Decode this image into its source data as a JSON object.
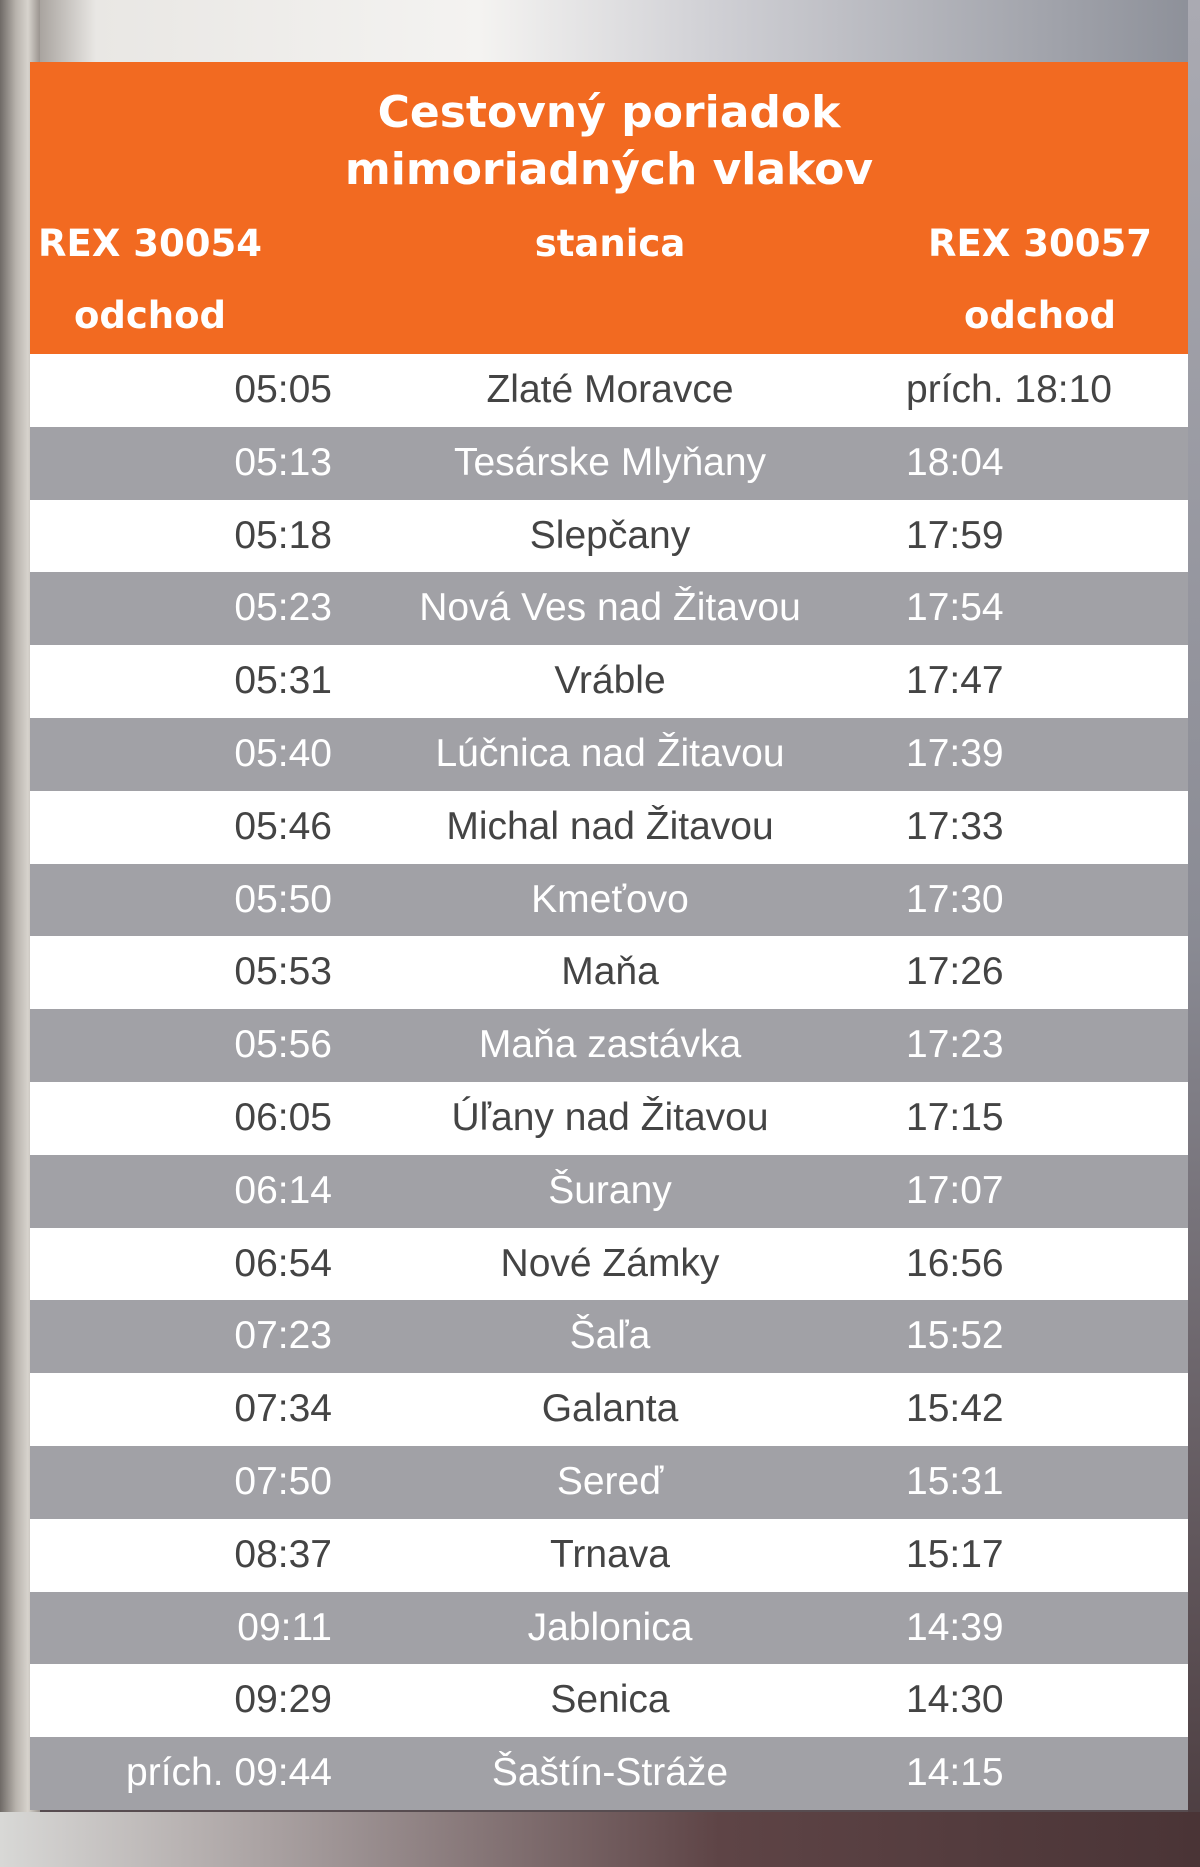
{
  "header": {
    "title_line1": "Cestovný poriadok",
    "title_line2": "mimoriadných vlakov",
    "col_left_train": "REX 30054",
    "col_left_label": "odchod",
    "col_mid_label": "stanica",
    "col_right_train": "REX 30057",
    "col_right_label": "odchod"
  },
  "colors": {
    "header_bg": "#f26a21",
    "row_alt_bg": "#a1a1a6",
    "row_bg": "#ffffff"
  },
  "rows": [
    {
      "left": "05:05",
      "station": "Zlaté Moravce",
      "right": "prích. 18:10"
    },
    {
      "left": "05:13",
      "station": "Tesárske Mlyňany",
      "right": "18:04"
    },
    {
      "left": "05:18",
      "station": "Slepčany",
      "right": "17:59"
    },
    {
      "left": "05:23",
      "station": "Nová Ves nad Žitavou",
      "right": "17:54"
    },
    {
      "left": "05:31",
      "station": "Vráble",
      "right": "17:47"
    },
    {
      "left": "05:40",
      "station": "Lúčnica nad Žitavou",
      "right": "17:39"
    },
    {
      "left": "05:46",
      "station": "Michal nad Žitavou",
      "right": "17:33"
    },
    {
      "left": "05:50",
      "station": "Kmeťovo",
      "right": "17:30"
    },
    {
      "left": "05:53",
      "station": "Maňa",
      "right": "17:26"
    },
    {
      "left": "05:56",
      "station": "Maňa zastávka",
      "right": "17:23"
    },
    {
      "left": "06:05",
      "station": "Úľany nad Žitavou",
      "right": "17:15"
    },
    {
      "left": "06:14",
      "station": "Šurany",
      "right": "17:07"
    },
    {
      "left": "06:54",
      "station": "Nové Zámky",
      "right": "16:56"
    },
    {
      "left": "07:23",
      "station": "Šaľa",
      "right": "15:52"
    },
    {
      "left": "07:34",
      "station": "Galanta",
      "right": "15:42"
    },
    {
      "left": "07:50",
      "station": "Sereď",
      "right": "15:31"
    },
    {
      "left": "08:37",
      "station": "Trnava",
      "right": "15:17"
    },
    {
      "left": "09:11",
      "station": "Jablonica",
      "right": "14:39"
    },
    {
      "left": "09:29",
      "station": "Senica",
      "right": "14:30"
    },
    {
      "left": "prích. 09:44",
      "station": "Šaštín-Stráže",
      "right": "14:15"
    }
  ]
}
